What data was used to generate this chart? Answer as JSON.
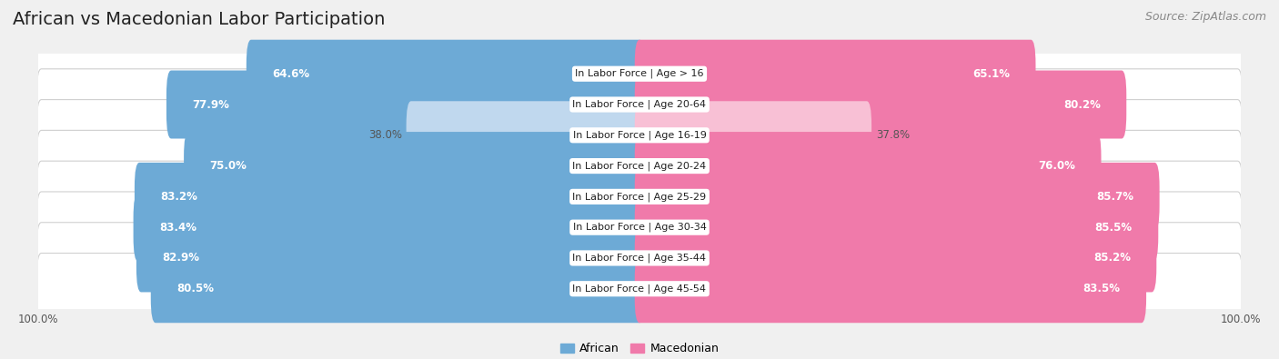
{
  "title": "African vs Macedonian Labor Participation",
  "source": "Source: ZipAtlas.com",
  "categories": [
    "In Labor Force | Age > 16",
    "In Labor Force | Age 20-64",
    "In Labor Force | Age 16-19",
    "In Labor Force | Age 20-24",
    "In Labor Force | Age 25-29",
    "In Labor Force | Age 30-34",
    "In Labor Force | Age 35-44",
    "In Labor Force | Age 45-54"
  ],
  "african_values": [
    64.6,
    77.9,
    38.0,
    75.0,
    83.2,
    83.4,
    82.9,
    80.5
  ],
  "macedonian_values": [
    65.1,
    80.2,
    37.8,
    76.0,
    85.7,
    85.5,
    85.2,
    83.5
  ],
  "african_color": "#6daad6",
  "macedonian_color": "#f07aaa",
  "african_color_light": "#c0d8ee",
  "macedonian_color_light": "#f8c0d5",
  "light_rows": [
    2
  ],
  "row_bg_color": "#e8e8e8",
  "row_bg_inner": "#f5f5f5",
  "bg_color": "#f0f0f0",
  "max_value": 100.0,
  "title_fontsize": 14,
  "source_fontsize": 9,
  "label_fontsize": 8,
  "value_fontsize": 8.5,
  "legend_fontsize": 9,
  "axis_label_fontsize": 8.5
}
